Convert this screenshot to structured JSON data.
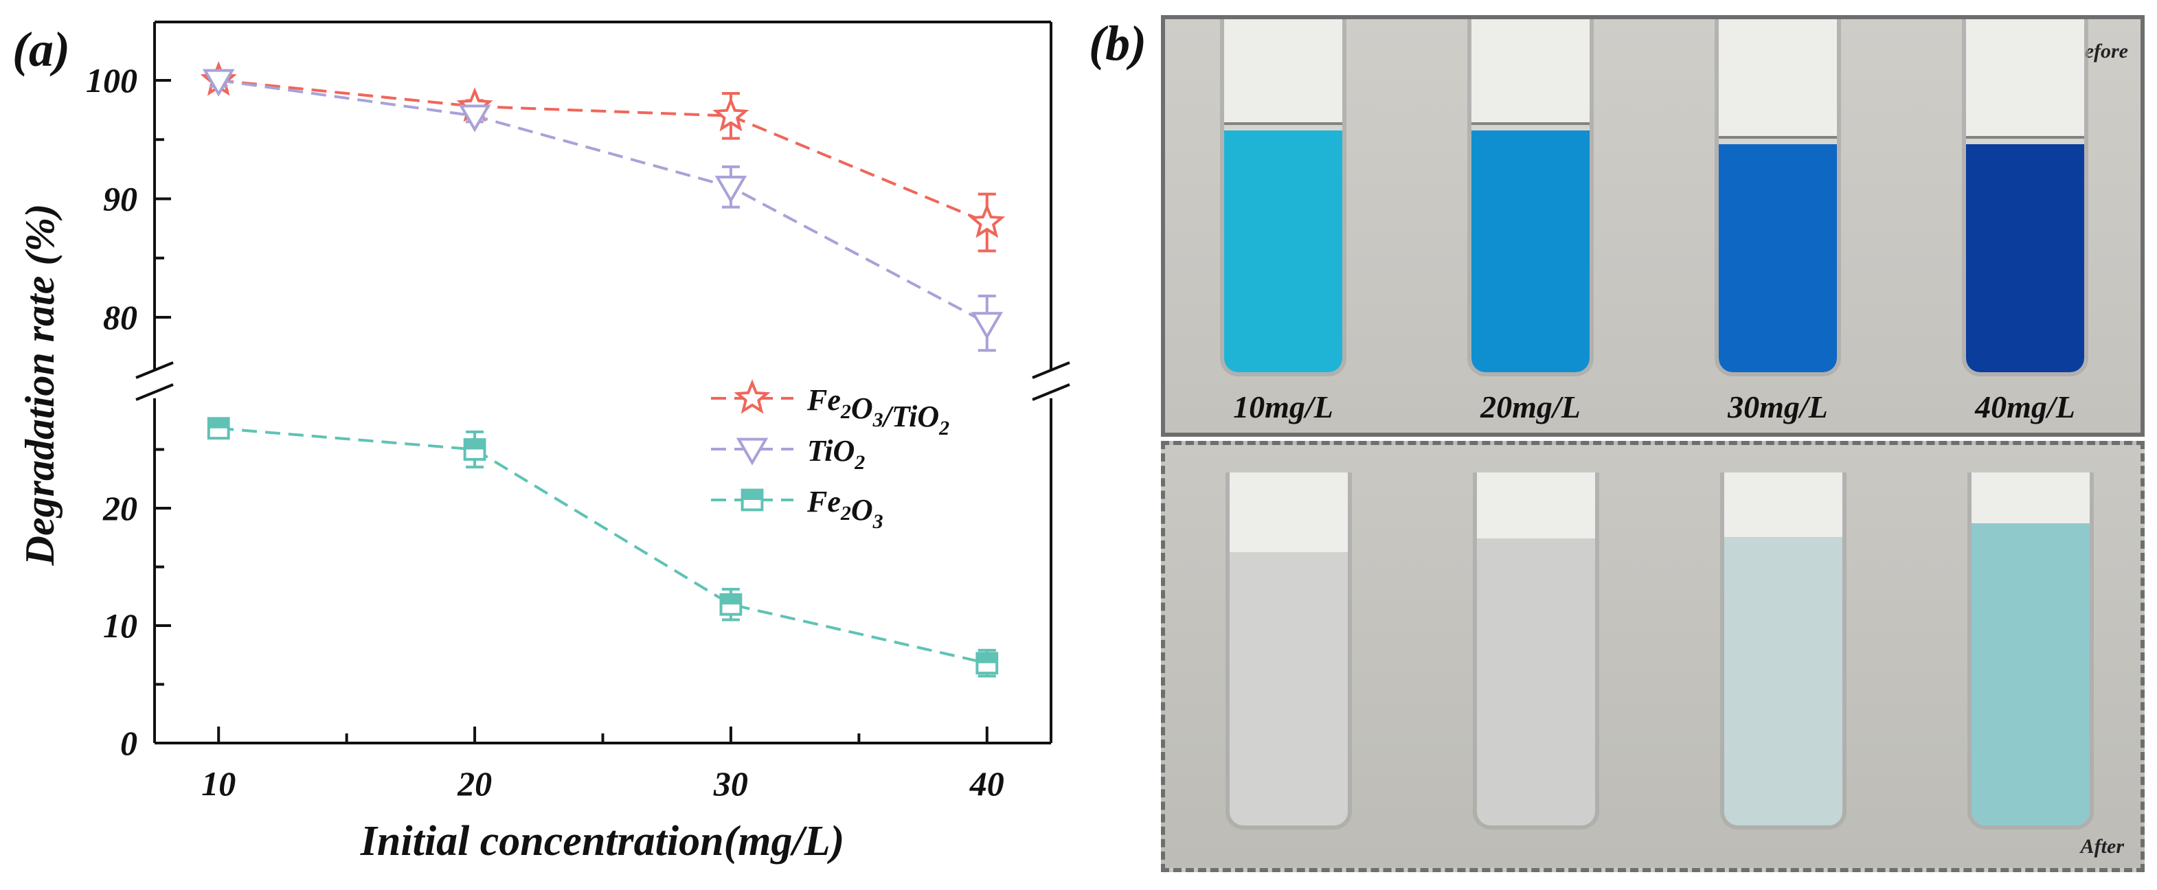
{
  "panel_a_label": "(a)",
  "panel_b_label": "(b)",
  "chart_data": {
    "type": "line",
    "xlabel": "Initial concentration(mg/L)",
    "ylabel": "Degradation rate (%)",
    "x": [
      10,
      20,
      30,
      40
    ],
    "x_ticks": [
      10,
      20,
      30,
      40
    ],
    "xlim": [
      7.5,
      42.5
    ],
    "y_axis_break": true,
    "y_ranges": [
      [
        0,
        27
      ],
      [
        75,
        102
      ]
    ],
    "y_ticks_lower": [
      0,
      10,
      20
    ],
    "y_ticks_upper": [
      80,
      90,
      100
    ],
    "legend_position": "center-right",
    "series": [
      {
        "name_main": "Fe",
        "name_sub1": "2",
        "name_mid": "O",
        "name_sub2": "3",
        "name_tail": "/TiO",
        "name_sub3": "2",
        "values": [
          100,
          97.8,
          97,
          88
        ],
        "errors": [
          0.5,
          0.5,
          1.9,
          2.4
        ],
        "color": "#f0665a",
        "marker": "star"
      },
      {
        "name_main": "TiO",
        "name_sub1": "2",
        "values": [
          100,
          97,
          91,
          79.5
        ],
        "errors": [
          0.5,
          0.5,
          1.7,
          2.3
        ],
        "color": "#a8a2d8",
        "marker": "triangle-down"
      },
      {
        "name_main": "Fe",
        "name_sub1": "2",
        "name_mid": "O",
        "name_sub2": "3",
        "values": [
          26.8,
          25,
          11.8,
          6.8
        ],
        "errors": [
          0.7,
          1.5,
          1.3,
          1.1
        ],
        "color": "#5fc2b5",
        "marker": "square-half"
      }
    ]
  },
  "photo": {
    "before_label": "Before",
    "after_label": "After",
    "concentration_labels": [
      "10mg/L",
      "20mg/L",
      "30mg/L",
      "40mg/L"
    ],
    "before_colors": [
      "#1fb4d6",
      "#0f8fd0",
      "#0f67c4",
      "#0a3d9c"
    ],
    "after_colors": [
      "#d2d3d1",
      "#cfd0ce",
      "#c4d6d6",
      "#8fc9cc"
    ]
  }
}
